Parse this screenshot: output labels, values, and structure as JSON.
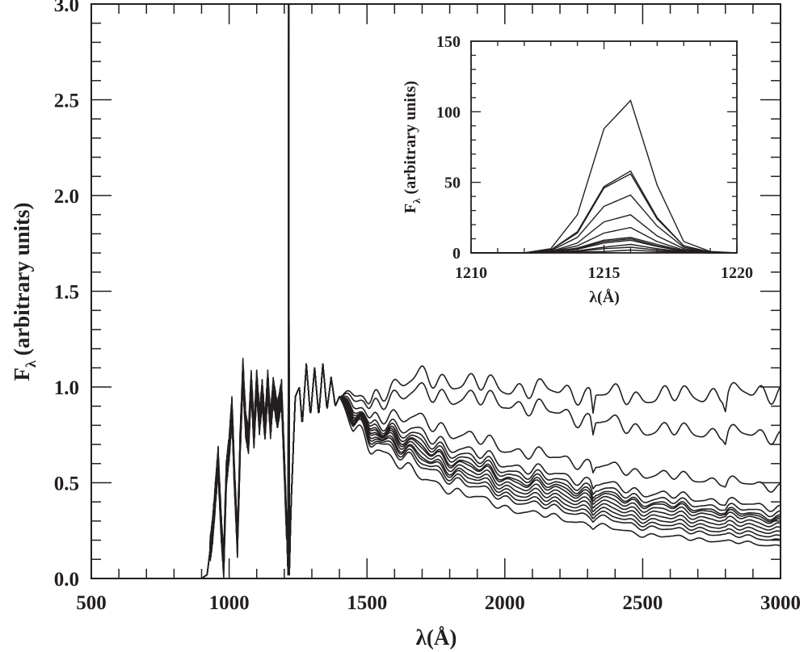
{
  "chart_data": [
    {
      "type": "line",
      "name": "main",
      "xlabel": "λ(Å)",
      "ylabel_main": "F",
      "ylabel_sub": "λ",
      "ylabel_rest": "(arbitrary units)",
      "xlim": [
        500,
        3000
      ],
      "ylim": [
        0,
        3.0
      ],
      "x_ticks": [
        "500",
        "1000",
        "1500",
        "2000",
        "2500",
        "3000"
      ],
      "y_ticks": [
        "0.0",
        "0.5",
        "1.0",
        "1.5",
        "2.0",
        "2.5",
        "3.0"
      ],
      "grid": false,
      "shared_profile": {
        "x": [
          500,
          900,
          920,
          940,
          960,
          970,
          980,
          990,
          1000,
          1010,
          1020,
          1030,
          1040,
          1050,
          1060,
          1070,
          1080,
          1090,
          1100,
          1110,
          1120,
          1130,
          1140,
          1150,
          1160,
          1175,
          1190,
          1200,
          1210,
          1214,
          1215,
          1216,
          1217,
          1218,
          1225,
          1240,
          1255,
          1265,
          1280,
          1295,
          1310,
          1325,
          1340,
          1355,
          1370,
          1385,
          1400
        ],
        "y": [
          0,
          0,
          0.02,
          0.25,
          0.62,
          0.3,
          0.07,
          0.55,
          0.68,
          0.88,
          0.5,
          0.18,
          0.7,
          1.08,
          0.8,
          0.72,
          1.02,
          0.75,
          1.02,
          0.82,
          0.97,
          0.78,
          1.02,
          0.8,
          0.98,
          0.85,
          0.97,
          0.6,
          0.2,
          0.02,
          3.2,
          3.2,
          3.2,
          0.02,
          0.4,
          0.95,
          1.0,
          0.8,
          1.12,
          0.85,
          1.1,
          0.85,
          1.12,
          0.88,
          1.05,
          0.9,
          0.95
        ]
      },
      "continuum_x": [
        1450,
        1700,
        2000,
        2500,
        3000
      ],
      "series": [
        {
          "name": "s1",
          "continuum": [
            0.95,
            1.05,
            1.0,
            0.95,
            0.98
          ]
        },
        {
          "name": "s2",
          "continuum": [
            0.93,
            0.97,
            0.92,
            0.78,
            0.75
          ]
        },
        {
          "name": "s3",
          "continuum": [
            0.9,
            0.82,
            0.68,
            0.55,
            0.48
          ]
        },
        {
          "name": "s4",
          "continuum": [
            0.88,
            0.75,
            0.6,
            0.45,
            0.37
          ]
        },
        {
          "name": "s5",
          "continuum": [
            0.87,
            0.72,
            0.57,
            0.42,
            0.34
          ]
        },
        {
          "name": "s6",
          "continuum": [
            0.86,
            0.7,
            0.55,
            0.4,
            0.32
          ]
        },
        {
          "name": "s7",
          "continuum": [
            0.86,
            0.68,
            0.53,
            0.39,
            0.31
          ]
        },
        {
          "name": "s8",
          "continuum": [
            0.85,
            0.67,
            0.52,
            0.37,
            0.3
          ]
        },
        {
          "name": "s9",
          "continuum": [
            0.85,
            0.65,
            0.5,
            0.35,
            0.28
          ]
        },
        {
          "name": "s10",
          "continuum": [
            0.84,
            0.63,
            0.48,
            0.33,
            0.26
          ]
        },
        {
          "name": "s11",
          "continuum": [
            0.83,
            0.62,
            0.46,
            0.31,
            0.24
          ]
        },
        {
          "name": "s12",
          "continuum": [
            0.82,
            0.6,
            0.44,
            0.29,
            0.22
          ]
        },
        {
          "name": "s13",
          "continuum": [
            0.81,
            0.58,
            0.42,
            0.27,
            0.2
          ]
        },
        {
          "name": "s14",
          "continuum": [
            0.78,
            0.52,
            0.37,
            0.23,
            0.17
          ]
        }
      ],
      "absorption_features": [
        {
          "x": 1510,
          "depth": 0.08
        },
        {
          "x": 2320,
          "depth": 0.12
        },
        {
          "x": 2800,
          "depth": 0.07
        }
      ]
    },
    {
      "type": "line",
      "name": "inset",
      "xlabel": "λ(Å)",
      "ylabel_main": "F",
      "ylabel_sub": "λ",
      "ylabel_rest": "(arbitrary units)",
      "xlim": [
        1210,
        1220
      ],
      "ylim": [
        0,
        150
      ],
      "x_ticks": [
        "1210",
        "1215",
        "1220"
      ],
      "y_ticks": [
        "0",
        "50",
        "100",
        "150"
      ],
      "x": [
        1210,
        1211,
        1212,
        1213,
        1214,
        1215,
        1216,
        1217,
        1218,
        1219,
        1220
      ],
      "series": [
        {
          "name": "i1",
          "values": [
            0,
            0,
            0,
            3,
            27,
            88,
            108,
            48,
            8,
            1,
            0
          ]
        },
        {
          "name": "i2",
          "values": [
            0,
            0,
            0,
            2,
            15,
            47,
            58,
            25,
            5,
            0.5,
            0
          ]
        },
        {
          "name": "i3",
          "values": [
            0,
            0,
            0,
            2,
            14,
            46,
            56,
            24,
            5,
            0.5,
            0
          ]
        },
        {
          "name": "i4",
          "values": [
            0,
            0,
            0,
            1.5,
            11,
            33,
            41,
            19,
            4,
            0.3,
            0
          ]
        },
        {
          "name": "i5",
          "values": [
            0,
            0,
            0,
            1,
            7,
            22,
            27,
            12,
            3,
            0.2,
            0
          ]
        },
        {
          "name": "i6",
          "values": [
            0,
            0,
            0,
            1,
            5,
            14,
            18,
            8,
            2,
            0.1,
            0
          ]
        },
        {
          "name": "i7",
          "values": [
            0,
            0,
            0,
            0.8,
            3.5,
            9,
            11,
            6,
            1.5,
            0,
            0
          ]
        },
        {
          "name": "i8",
          "values": [
            0,
            0,
            0,
            0.7,
            3,
            8,
            10,
            5,
            1.3,
            0,
            0
          ]
        },
        {
          "name": "i9",
          "values": [
            0,
            0,
            0,
            0.6,
            2.5,
            7,
            9,
            4.5,
            1.2,
            0,
            0
          ]
        },
        {
          "name": "i10",
          "values": [
            0,
            0,
            0,
            0.4,
            1.5,
            4,
            6,
            3,
            0.8,
            0,
            0
          ]
        },
        {
          "name": "i11",
          "values": [
            0,
            0,
            0,
            0.3,
            1,
            3,
            4,
            2,
            0.5,
            0,
            0
          ]
        },
        {
          "name": "i12",
          "values": [
            0,
            0,
            0,
            0.1,
            0.5,
            1,
            2,
            1,
            0.3,
            0,
            0
          ]
        }
      ]
    }
  ]
}
